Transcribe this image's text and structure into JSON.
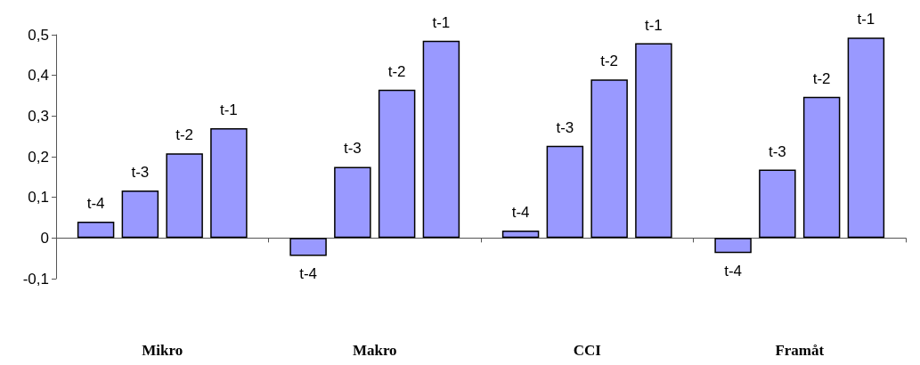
{
  "chart_data": {
    "type": "bar",
    "categories": [
      "Mikro",
      "Makro",
      "CCI",
      "Framåt"
    ],
    "series": [
      {
        "name": "t-4",
        "color": "#9999ff",
        "values": [
          0.04,
          -0.044,
          0.018,
          -0.037
        ]
      },
      {
        "name": "t-3",
        "color": "#9999ff",
        "values": [
          0.117,
          0.175,
          0.227,
          0.168
        ]
      },
      {
        "name": "t-2",
        "color": "#9999ff",
        "values": [
          0.208,
          0.365,
          0.39,
          0.347
        ]
      },
      {
        "name": "t-1",
        "color": "#9999ff",
        "values": [
          0.27,
          0.485,
          0.479,
          0.493
        ]
      }
    ],
    "ylim": [
      -0.1,
      0.5
    ],
    "yticks": [
      {
        "value": -0.1,
        "label": "-0,1"
      },
      0,
      {
        "value": 0.1,
        "label": "0,1"
      },
      {
        "value": 0.2,
        "label": "0,2"
      },
      {
        "value": 0.3,
        "label": "0,3"
      },
      {
        "value": 0.4,
        "label": "0,4"
      },
      {
        "value": 0.5,
        "label": "0,5"
      }
    ]
  }
}
